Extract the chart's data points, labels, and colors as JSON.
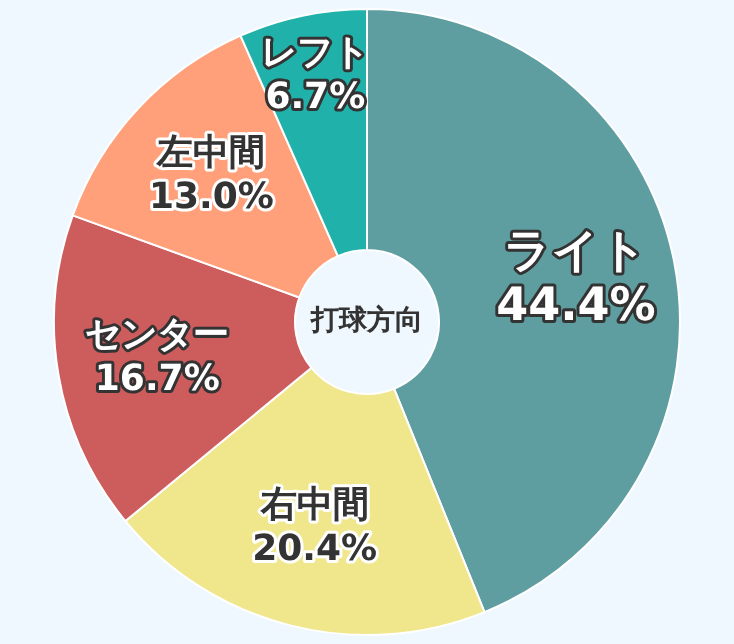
{
  "chart_data": {
    "type": "donut",
    "title": "打球方向",
    "categories": [
      "ライト",
      "右中間",
      "センター",
      "左中間",
      "レフト"
    ],
    "values": [
      44.4,
      20.4,
      16.7,
      13.0,
      6.7
    ],
    "value_labels": [
      "44.4%",
      "20.4%",
      "16.7%",
      "13.0%",
      "6.7%"
    ],
    "colors": [
      "#5f9ea0",
      "#f0e68c",
      "#cd5c5c",
      "#ffa07a",
      "#20b2aa"
    ],
    "legend": false
  }
}
